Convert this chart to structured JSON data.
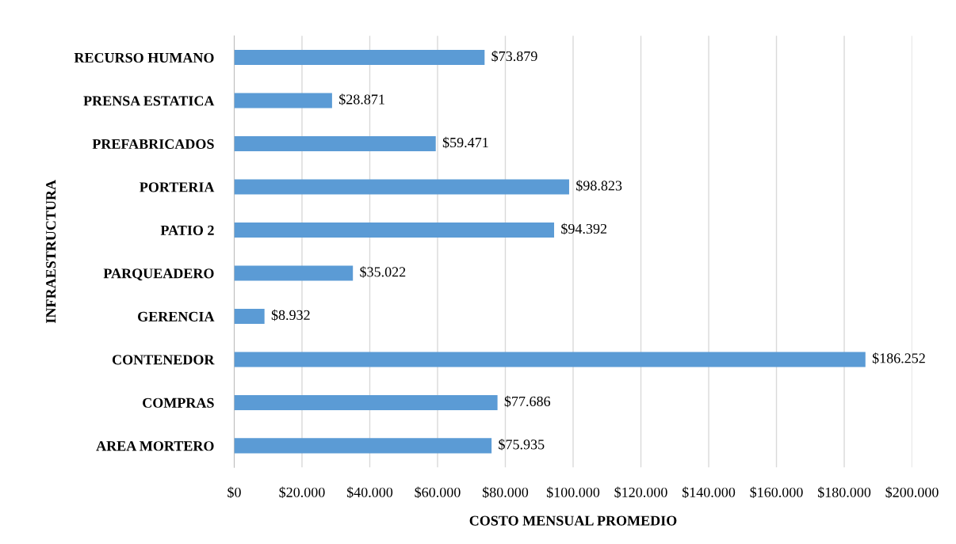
{
  "chart_data": {
    "type": "bar",
    "orientation": "horizontal",
    "categories": [
      "RECURSO HUMANO",
      "PRENSA ESTATICA",
      "PREFABRICADOS",
      "PORTERIA",
      "PATIO 2",
      "PARQUEADERO",
      "GERENCIA",
      "CONTENEDOR",
      "COMPRAS",
      "AREA MORTERO"
    ],
    "values": [
      73879,
      28871,
      59471,
      98823,
      94392,
      35022,
      8932,
      186252,
      77686,
      75935
    ],
    "value_labels": [
      "$73.879",
      "$28.871",
      "$59.471",
      "$98.823",
      "$94.392",
      "$35.022",
      "$8.932",
      "$186.252",
      "$77.686",
      "$75.935"
    ],
    "color": "#5b9bd5",
    "xlabel": "COSTO MENSUAL PROMEDIO",
    "ylabel": "INFRAESTRUCTURA",
    "xlim": [
      0,
      200000
    ],
    "xticks": [
      {
        "value": 0,
        "label": "$0"
      },
      {
        "value": 20000,
        "label": "$20.000"
      },
      {
        "value": 40000,
        "label": "$40.000"
      },
      {
        "value": 60000,
        "label": "$60.000"
      },
      {
        "value": 80000,
        "label": "$80.000"
      },
      {
        "value": 100000,
        "label": "$100.000"
      },
      {
        "value": 120000,
        "label": "$120.000"
      },
      {
        "value": 140000,
        "label": "$140.000"
      },
      {
        "value": 160000,
        "label": "$160.000"
      },
      {
        "value": 180000,
        "label": "$180.000"
      },
      {
        "value": 200000,
        "label": "$200.000"
      }
    ],
    "grid": "x"
  }
}
